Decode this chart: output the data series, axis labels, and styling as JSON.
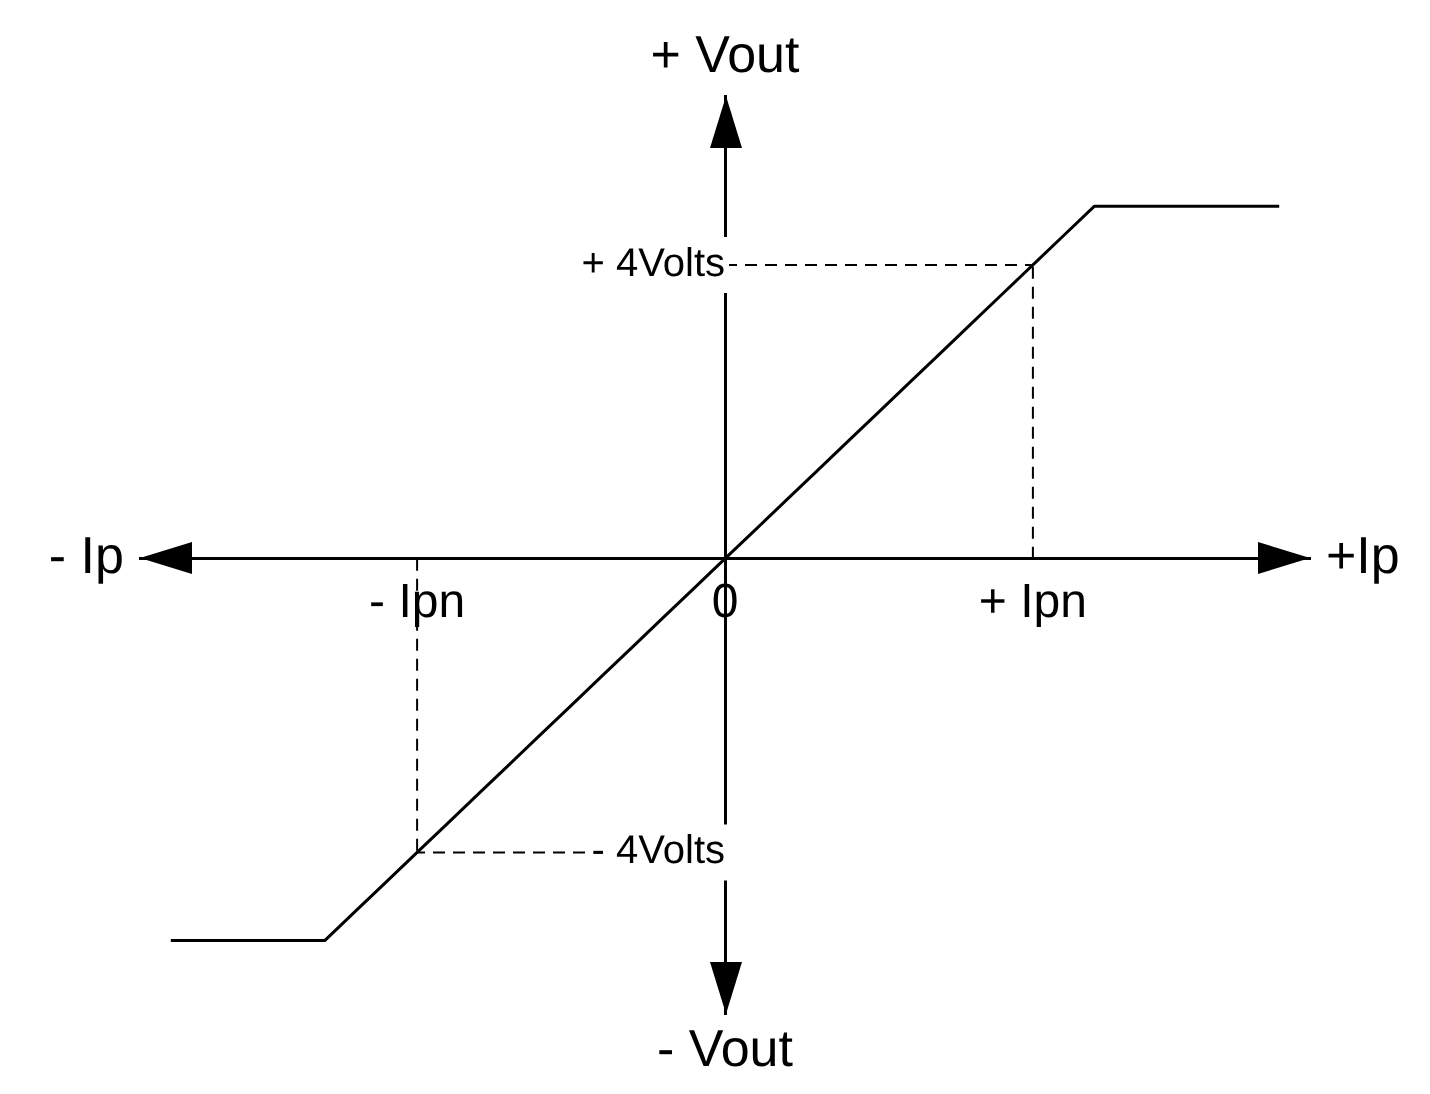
{
  "chart_data": {
    "type": "line",
    "xlabel": "+Ip",
    "ylabel": "+ Vout",
    "annotations": [
      "- Vout",
      "- Ip"
    ],
    "categories": [
      null,
      null,
      null,
      null,
      null,
      null,
      null,
      null,
      null,
      "- Ipn",
      null,
      null,
      null,
      null,
      null,
      null,
      null,
      null,
      null,
      "0",
      null,
      null,
      null,
      null,
      null,
      null,
      null,
      null,
      null,
      "+ Ipn",
      null,
      null,
      null,
      null,
      null,
      null,
      null,
      null,
      null
    ],
    "series": [
      {
        "color": "#000000",
        "values": [
          null,
          -5.2,
          -5.2,
          -5.2,
          -5.2,
          -5.2,
          -5.2,
          -4.8,
          -4.4,
          -4,
          -3.6,
          -3.2,
          -2.8,
          -2.4,
          -2,
          -1.6,
          -1.2,
          -0.8,
          -0.4,
          0,
          0.4,
          0.8,
          1.2,
          1.6,
          2,
          2.4,
          2.8,
          3.2,
          3.6,
          4,
          4.4,
          4.8,
          4.8,
          4.8,
          4.8,
          4.8,
          4.8,
          4.8,
          null
        ]
      }
    ],
    "ylim": [
      -6.2,
      6.3
    ],
    "yticks": [
      {
        "value": -4,
        "label": "- 4Volts"
      },
      {
        "value": 4,
        "label": "+ 4Volts"
      }
    ],
    "ref_lines": [
      {
        "axis": "x",
        "value": "+ Ipn",
        "line_style": "dashed",
        "color": "#000000"
      },
      {
        "axis": "y",
        "value": 4,
        "line_style": "dashed",
        "color": "#000000"
      },
      {
        "axis": "x",
        "value": "- Ipn",
        "line_style": "dashed",
        "color": "#000000"
      },
      {
        "axis": "y",
        "value": -4,
        "line_style": "dashed",
        "color": "#000000"
      }
    ],
    "grid": false,
    "legend": false,
    "marker": "none",
    "line_style": "solid"
  }
}
